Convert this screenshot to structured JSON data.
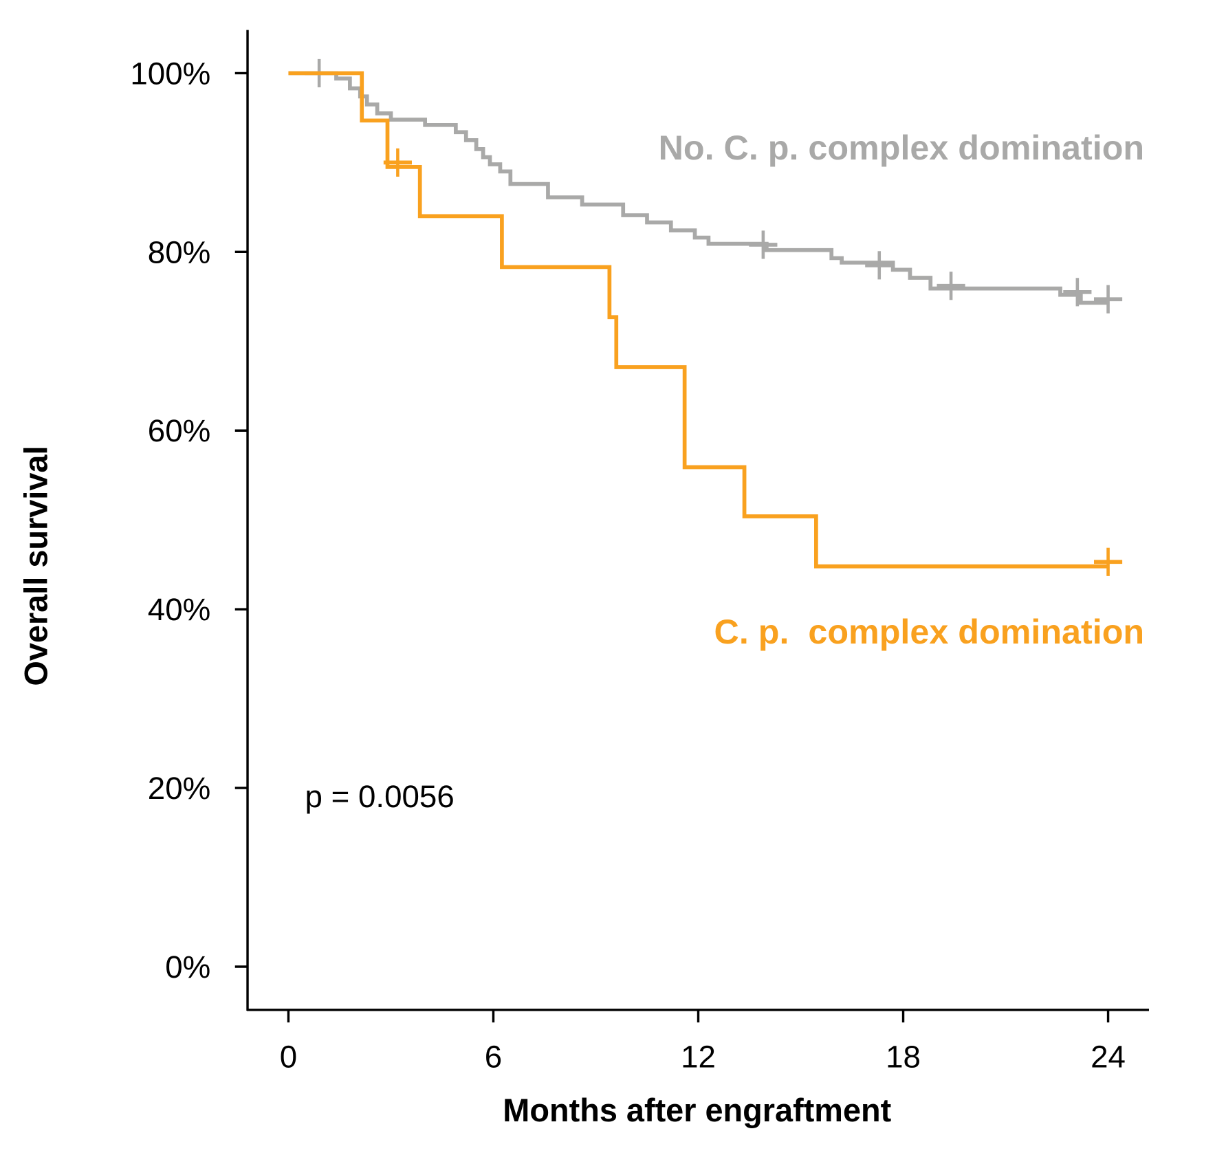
{
  "chart_data": {
    "type": "line",
    "subtype": "kaplan-meier step",
    "xlabel": "Months after engraftment",
    "ylabel": "Overall survival",
    "xlim": [
      -1.2,
      25.2
    ],
    "ylim": [
      -4.8,
      104.8
    ],
    "x_ticks": [
      0,
      6,
      12,
      18,
      24
    ],
    "x_tick_labels": [
      "0",
      "6",
      "12",
      "18",
      "24"
    ],
    "y_ticks": [
      0,
      20,
      40,
      60,
      80,
      100
    ],
    "y_tick_labels": [
      "0%",
      "20%",
      "40%",
      "60%",
      "80%",
      "100%"
    ],
    "grid": false,
    "annotation": "p = 0.0056",
    "series": [
      {
        "name": "No. C. p. complex domination",
        "color": "#a9a9a8",
        "steps": [
          [
            0,
            100
          ],
          [
            1.4,
            99.4
          ],
          [
            1.8,
            98.3
          ],
          [
            2.1,
            97.4
          ],
          [
            2.3,
            96.5
          ],
          [
            2.6,
            95.5
          ],
          [
            3.0,
            94.8
          ],
          [
            4.0,
            94.2
          ],
          [
            4.9,
            93.4
          ],
          [
            5.2,
            92.5
          ],
          [
            5.5,
            91.5
          ],
          [
            5.7,
            90.6
          ],
          [
            5.9,
            89.8
          ],
          [
            6.2,
            89.0
          ],
          [
            6.5,
            87.6
          ],
          [
            7.6,
            86.1
          ],
          [
            8.6,
            85.3
          ],
          [
            9.8,
            84.1
          ],
          [
            10.5,
            83.3
          ],
          [
            11.2,
            82.4
          ],
          [
            11.9,
            81.6
          ],
          [
            12.3,
            80.9
          ],
          [
            14.0,
            80.2
          ],
          [
            15.9,
            79.3
          ],
          [
            16.2,
            78.8
          ],
          [
            17.7,
            78.0
          ],
          [
            18.2,
            77.1
          ],
          [
            18.8,
            75.9
          ],
          [
            22.6,
            75.2
          ],
          [
            23.2,
            74.3
          ],
          [
            24,
            74.3
          ]
        ],
        "censored": [
          [
            0.9,
            100
          ],
          [
            13.9,
            80.8
          ],
          [
            17.3,
            78.5
          ],
          [
            19.4,
            76.2
          ],
          [
            23.1,
            75.5
          ],
          [
            24,
            74.7
          ]
        ]
      },
      {
        "name": "C. p.  complex domination",
        "color": "#f9a11f",
        "steps": [
          [
            0,
            100
          ],
          [
            2.15,
            94.7
          ],
          [
            2.9,
            89.5
          ],
          [
            3.85,
            84.0
          ],
          [
            6.25,
            78.3
          ],
          [
            9.4,
            72.7
          ],
          [
            9.6,
            67.1
          ],
          [
            11.6,
            55.9
          ],
          [
            13.35,
            50.4
          ],
          [
            15.45,
            44.8
          ],
          [
            24,
            44.8
          ]
        ],
        "censored": [
          [
            3.2,
            90.0
          ],
          [
            24,
            45.3
          ]
        ]
      }
    ]
  }
}
